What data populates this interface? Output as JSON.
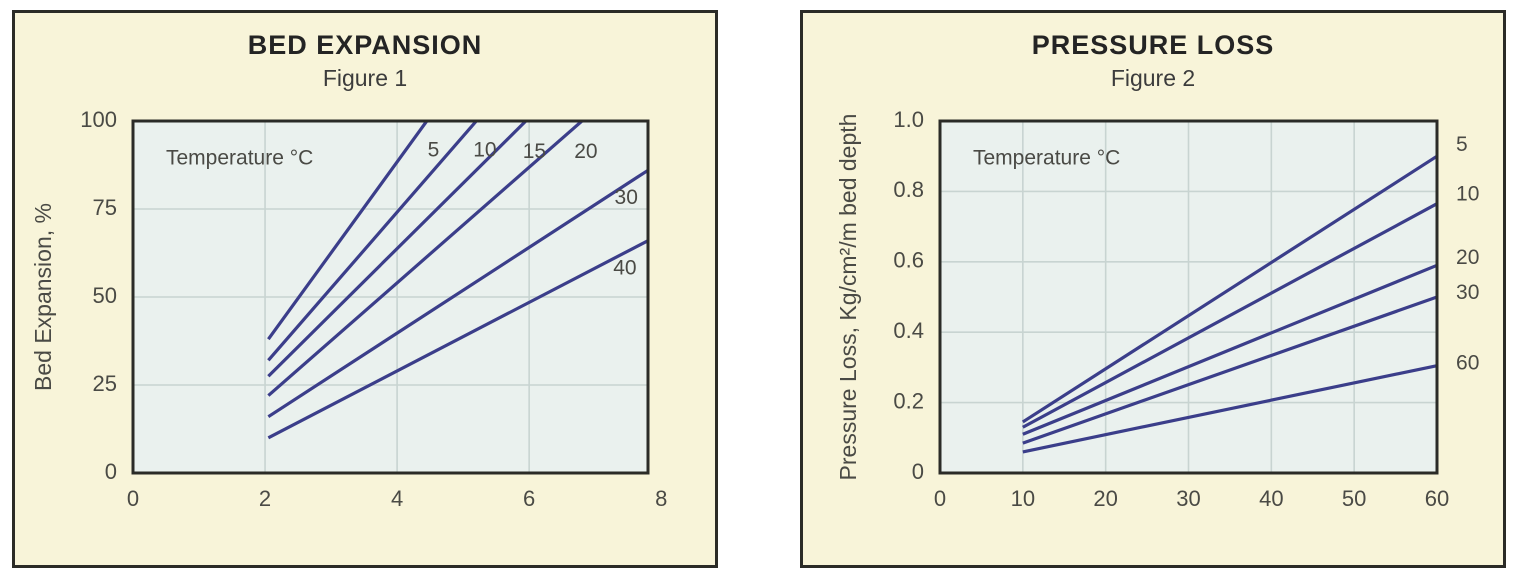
{
  "colors": {
    "page_background": "#ffffff",
    "panel_background": "#f8f4d9",
    "panel_border": "#2b2b27",
    "plot_background": "#eaf1ee",
    "plot_border": "#2b2b27",
    "gridline": "#c8d4d1",
    "series_line": "#3b3e8a",
    "label_text": "#4a4a45",
    "title_text": "#242424"
  },
  "chart_data": [
    {
      "type": "line",
      "title": "BED EXPANSION",
      "subtitle": "Figure 1",
      "legend_label": "Temperature °C",
      "xlabel": "",
      "ylabel": "Bed Expansion, %",
      "xlim": [
        0,
        8
      ],
      "ylim": [
        0,
        100
      ],
      "x_tick_values": [
        0,
        2,
        4,
        6,
        8
      ],
      "x_tick_labels": [
        "0",
        "2",
        "4",
        "6",
        "8"
      ],
      "y_tick_values": [
        0,
        25,
        50,
        75,
        100
      ],
      "y_tick_labels": [
        "0",
        "25",
        "50",
        "75",
        "100"
      ],
      "x_gridlines": [
        2,
        4,
        6
      ],
      "y_gridlines": [
        25,
        50,
        75
      ],
      "grid": true,
      "legend_position": "top-left-inside",
      "series_label_anchor": "middle",
      "series": [
        {
          "name": "5",
          "label": "5",
          "points": [
            [
              2.05,
              38
            ],
            [
              4.45,
              100
            ]
          ],
          "label_pos": [
            4.55,
            91.5
          ]
        },
        {
          "name": "10",
          "label": "10",
          "points": [
            [
              2.05,
              32
            ],
            [
              5.2,
              100
            ]
          ],
          "label_pos": [
            5.33,
            91.5
          ]
        },
        {
          "name": "15",
          "label": "15",
          "points": [
            [
              2.05,
              27.5
            ],
            [
              5.95,
              100
            ]
          ],
          "label_pos": [
            6.08,
            91
          ]
        },
        {
          "name": "20",
          "label": "20",
          "points": [
            [
              2.05,
              22
            ],
            [
              6.8,
              100
            ]
          ],
          "label_pos": [
            6.86,
            91
          ]
        },
        {
          "name": "30",
          "label": "30",
          "points": [
            [
              2.05,
              16
            ],
            [
              7.8,
              86
            ]
          ],
          "label_pos": [
            7.47,
            78
          ]
        },
        {
          "name": "40",
          "label": "40",
          "points": [
            [
              2.05,
              10
            ],
            [
              7.8,
              66
            ]
          ],
          "label_pos": [
            7.45,
            58
          ]
        }
      ]
    },
    {
      "type": "line",
      "title": "PRESSURE LOSS",
      "subtitle": "Figure 2",
      "legend_label": "Temperature °C",
      "xlabel": "",
      "ylabel": "Pressure Loss, Kg/cm²/m bed depth",
      "xlim": [
        0,
        60
      ],
      "ylim": [
        0,
        1.0
      ],
      "x_tick_values": [
        0,
        10,
        20,
        30,
        40,
        50,
        60
      ],
      "x_tick_labels": [
        "0",
        "10",
        "20",
        "30",
        "40",
        "50",
        "60"
      ],
      "y_tick_values": [
        0,
        0.2,
        0.4,
        0.6,
        0.8,
        1.0
      ],
      "y_tick_labels": [
        "0",
        "0.2",
        "0.4",
        "0.6",
        "0.8",
        "1.0"
      ],
      "x_gridlines": [
        10,
        20,
        30,
        40,
        50
      ],
      "y_gridlines": [
        0.2,
        0.4,
        0.6,
        0.8
      ],
      "grid": true,
      "legend_position": "top-left-inside",
      "series_label_anchor": "start",
      "series": [
        {
          "name": "5",
          "label": "5",
          "points": [
            [
              10,
              0.145
            ],
            [
              60,
              0.9
            ]
          ],
          "label_pos": [
            62.3,
            0.93
          ]
        },
        {
          "name": "10",
          "label": "10",
          "points": [
            [
              10,
              0.13
            ],
            [
              60,
              0.765
            ]
          ],
          "label_pos": [
            62.3,
            0.79
          ]
        },
        {
          "name": "20",
          "label": "20",
          "points": [
            [
              10,
              0.11
            ],
            [
              60,
              0.59
            ]
          ],
          "label_pos": [
            62.3,
            0.61
          ]
        },
        {
          "name": "30",
          "label": "30",
          "points": [
            [
              10,
              0.085
            ],
            [
              60,
              0.5
            ]
          ],
          "label_pos": [
            62.3,
            0.51
          ]
        },
        {
          "name": "60",
          "label": "60",
          "points": [
            [
              10,
              0.06
            ],
            [
              60,
              0.305
            ]
          ],
          "label_pos": [
            62.3,
            0.31
          ]
        }
      ]
    }
  ]
}
